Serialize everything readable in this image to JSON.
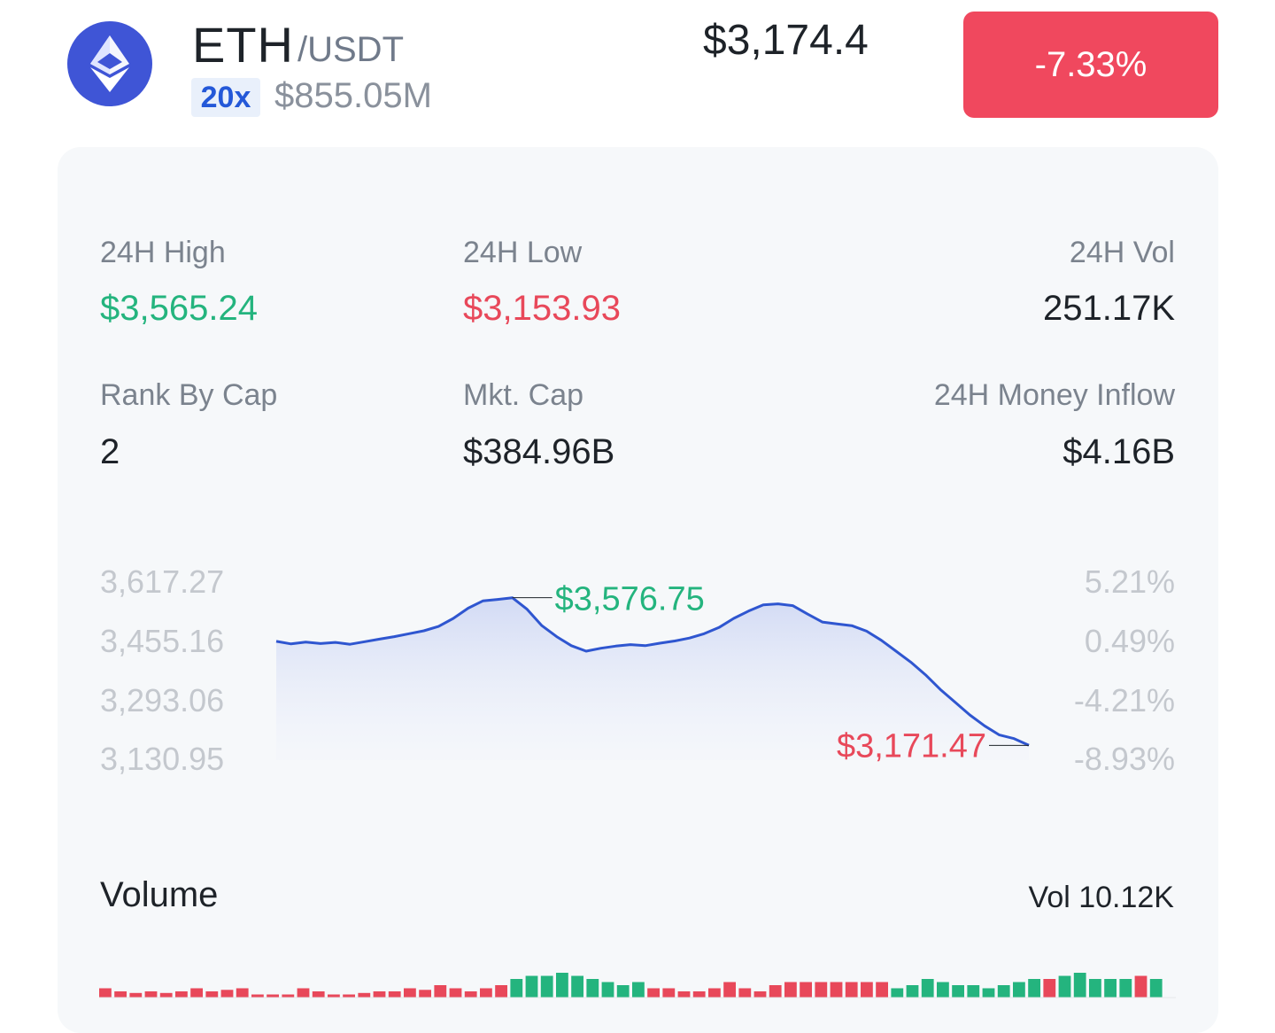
{
  "pair": {
    "symbol": "ETH",
    "quote": "/USDT",
    "leverage": "20x",
    "turnover": "$855.05M",
    "price": "$3,174.4",
    "change": "-7.33%",
    "icon": "ethereum-icon"
  },
  "stats": {
    "high_label": "24H High",
    "high_value": "$3,565.24",
    "low_label": "24H Low",
    "low_value": "$3,153.93",
    "vol_label": "24H Vol",
    "vol_value": "251.17K",
    "rank_label": "Rank By Cap",
    "rank_value": "2",
    "mcap_label": "Mkt. Cap",
    "mcap_value": "$384.96B",
    "inflow_label": "24H Money Inflow",
    "inflow_value": "$4.16B"
  },
  "colors": {
    "up": "#24b47e",
    "down": "#e8485a",
    "line": "#2f56d0",
    "badge_bg": "#f0485e"
  },
  "chart_data": [
    {
      "type": "area",
      "series": [
        {
          "values": [
            3457,
            3450,
            3455,
            3451,
            3454,
            3449,
            3456,
            3463,
            3470,
            3478,
            3486,
            3498,
            3520,
            3548,
            3568,
            3572,
            3576.75,
            3545,
            3500,
            3470,
            3445,
            3430,
            3438,
            3444,
            3448,
            3445,
            3452,
            3458,
            3466,
            3478,
            3495,
            3520,
            3540,
            3557,
            3560,
            3555,
            3532,
            3510,
            3505,
            3500,
            3485,
            3460,
            3430,
            3400,
            3365,
            3325,
            3290,
            3255,
            3225,
            3200,
            3190,
            3171.47
          ]
        }
      ],
      "y_axis_left": [
        "3,617.27",
        "3,455.16",
        "3,293.06",
        "3,130.95"
      ],
      "y_axis_right": [
        "5.21%",
        "0.49%",
        "-4.21%",
        "-8.93%"
      ],
      "ylim": [
        3130.95,
        3617.27
      ],
      "annotations": {
        "max": "$3,576.75",
        "min": "$3,171.47"
      }
    },
    {
      "type": "bar",
      "title": "Volume",
      "total": "Vol 10.12K",
      "values": [
        3,
        2,
        1.5,
        2,
        1.5,
        2,
        3,
        2,
        2.5,
        3,
        1,
        1,
        1,
        3,
        2,
        1,
        1,
        1.5,
        2,
        2,
        3,
        2.5,
        4,
        3,
        2,
        3,
        4,
        6,
        7,
        7,
        8,
        7,
        6,
        5,
        4,
        5,
        3,
        3,
        2,
        2,
        3,
        5,
        3,
        2,
        4,
        5,
        5,
        5,
        5,
        5,
        5,
        5,
        3,
        4,
        6,
        5,
        4,
        4,
        3,
        4,
        5,
        6,
        6,
        7,
        8,
        6,
        6,
        6,
        7,
        6
      ],
      "up": [
        false,
        false,
        false,
        false,
        false,
        false,
        false,
        false,
        false,
        false,
        false,
        false,
        false,
        false,
        false,
        false,
        false,
        false,
        false,
        false,
        false,
        false,
        false,
        false,
        false,
        false,
        false,
        true,
        true,
        true,
        true,
        true,
        true,
        true,
        true,
        true,
        false,
        false,
        false,
        false,
        false,
        false,
        false,
        false,
        false,
        false,
        false,
        false,
        false,
        false,
        false,
        false,
        true,
        true,
        true,
        true,
        true,
        true,
        true,
        true,
        true,
        true,
        false,
        true,
        true,
        true,
        true,
        true,
        false,
        true
      ]
    }
  ]
}
